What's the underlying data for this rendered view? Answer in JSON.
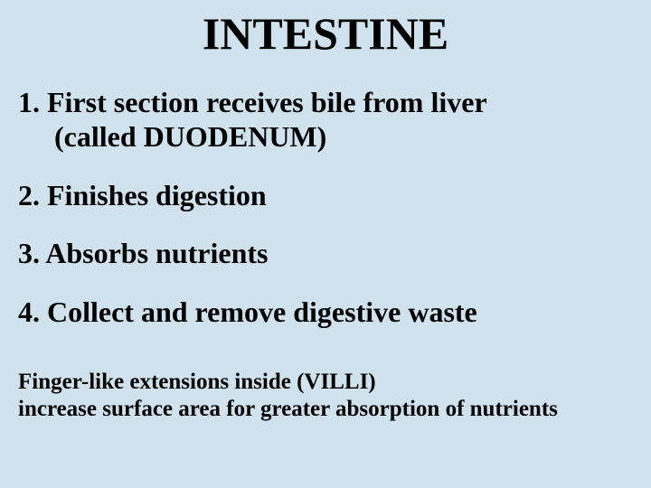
{
  "title": {
    "text": "INTESTINE",
    "fontsize": 50,
    "color": "#000000"
  },
  "items": [
    {
      "line1": "1. First section receives bile from liver",
      "line2": "(called DUODENUM)",
      "fontsize": 32
    },
    {
      "line1": "2. Finishes digestion",
      "fontsize": 32
    },
    {
      "line1": "3. Absorbs nutrients",
      "fontsize": 32
    },
    {
      "line1": "4. Collect and remove digestive waste",
      "fontsize": 32
    }
  ],
  "footer": {
    "line1": "Finger-like extensions inside (VILLI)",
    "line2": "increase surface area for greater absorption of nutrients",
    "fontsize": 25
  },
  "background_color": "#cfe2ed",
  "text_color": "#000000"
}
